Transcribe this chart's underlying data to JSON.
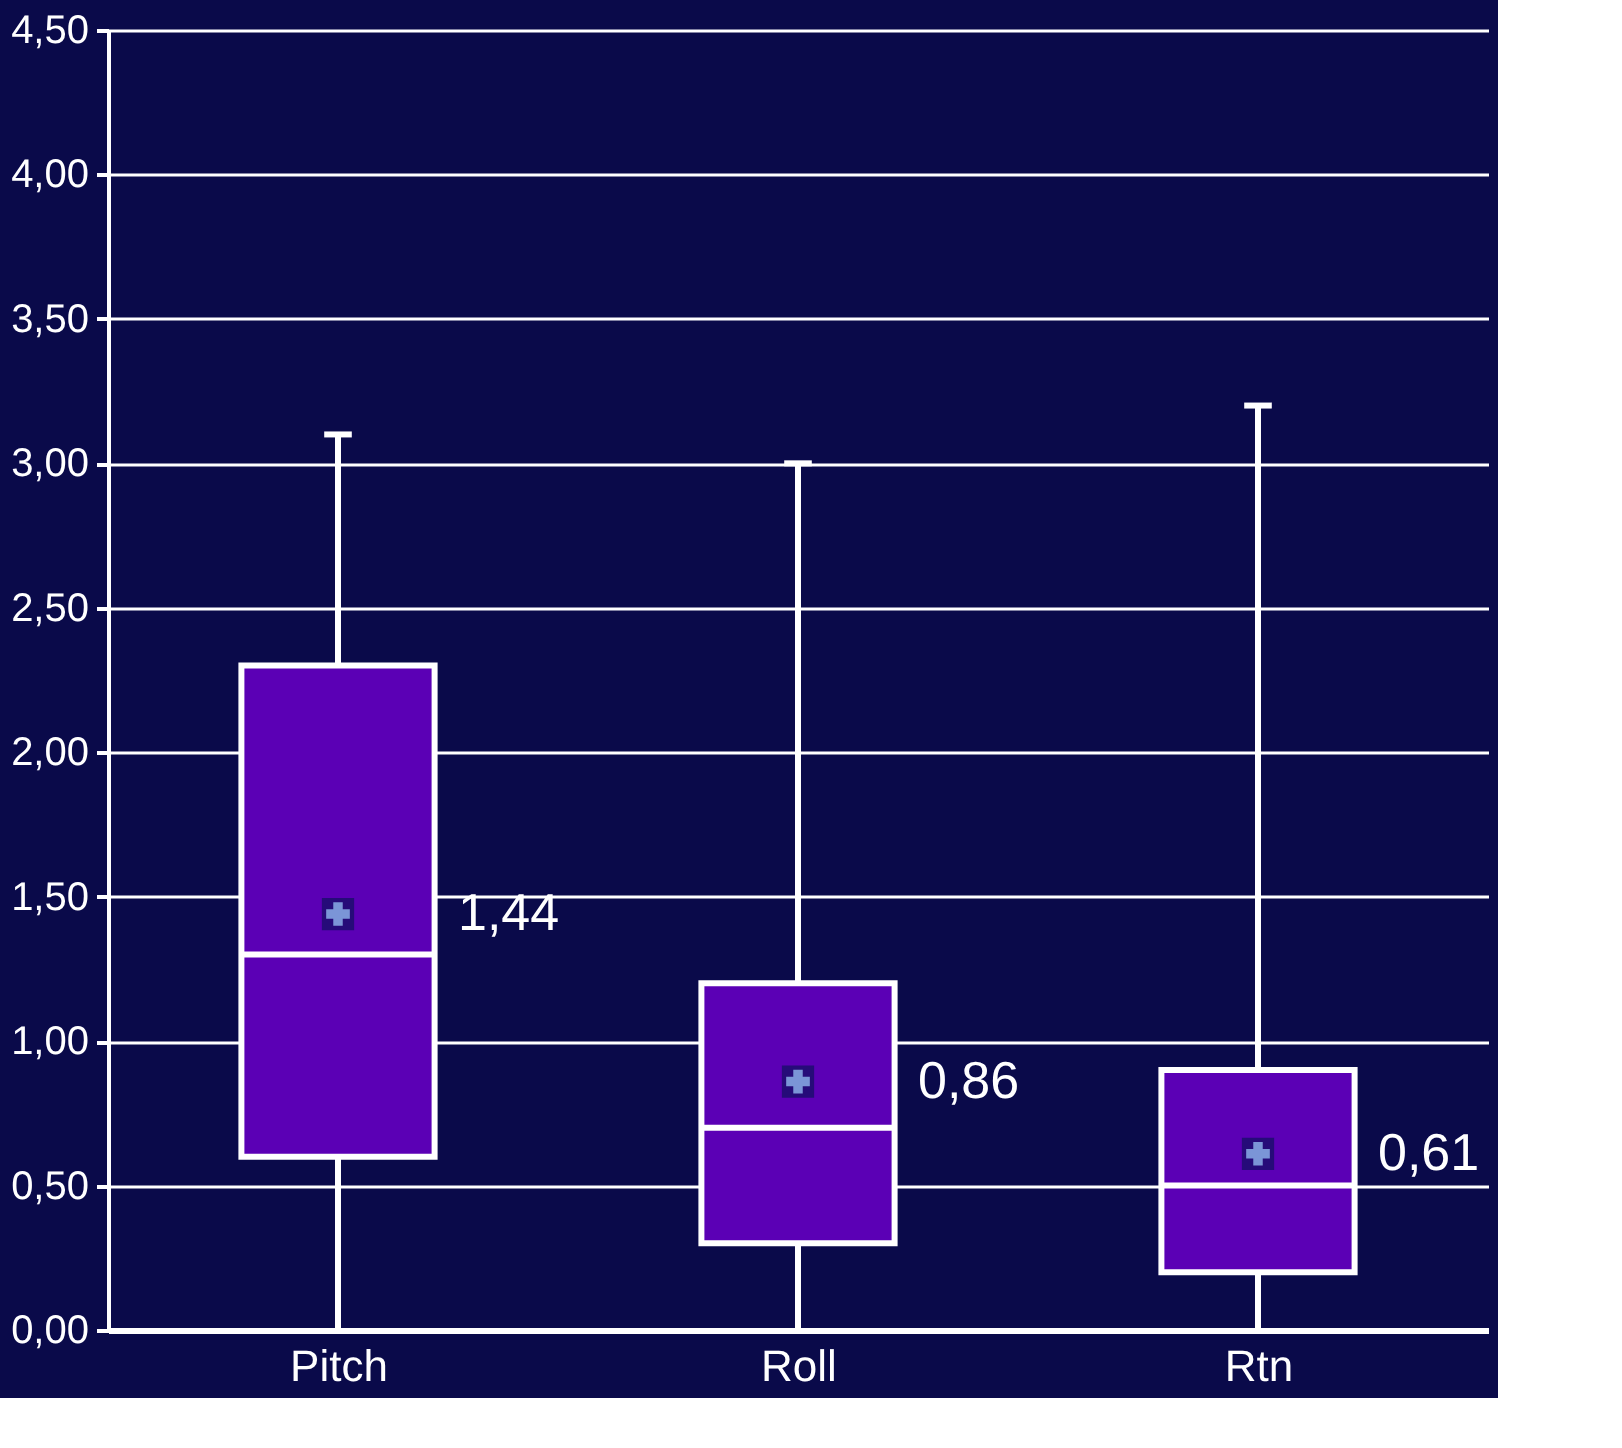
{
  "chart_data": {
    "type": "box",
    "categories": [
      "Pitch",
      "Roll",
      "Rtn"
    ],
    "boxes": [
      {
        "low": 0,
        "q1": 0.6,
        "median": 1.3,
        "q3": 2.3,
        "high": 3.1,
        "mean": 1.44
      },
      {
        "low": 0,
        "q1": 0.3,
        "median": 0.7,
        "q3": 1.2,
        "high": 3.0,
        "mean": 0.86
      },
      {
        "low": 0,
        "q1": 0.2,
        "median": 0.5,
        "q3": 0.9,
        "high": 3.2,
        "mean": 0.61
      }
    ],
    "color": "#5b00b5",
    "ylim": [
      0,
      4.5
    ],
    "yticks": [
      {
        "value": 0,
        "label": "0,00"
      },
      {
        "value": 0.5,
        "label": "0,50"
      },
      {
        "value": 1,
        "label": "1,00"
      },
      {
        "value": 1.5,
        "label": "1,50"
      },
      {
        "value": 2,
        "label": "2,00"
      },
      {
        "value": 2.5,
        "label": "2,50"
      },
      {
        "value": 3,
        "label": "3,00"
      },
      {
        "value": 3.5,
        "label": "3,50"
      },
      {
        "value": 4,
        "label": "4,00"
      },
      {
        "value": 4.5,
        "label": "4,50"
      }
    ],
    "grid": "y",
    "annotations": [
      {
        "text": "1,44",
        "x": "Pitch",
        "y": 1.44
      },
      {
        "text": "0,86",
        "x": "Roll",
        "y": 0.86
      },
      {
        "text": "0,61",
        "x": "Rtn",
        "y": 0.61
      }
    ]
  }
}
